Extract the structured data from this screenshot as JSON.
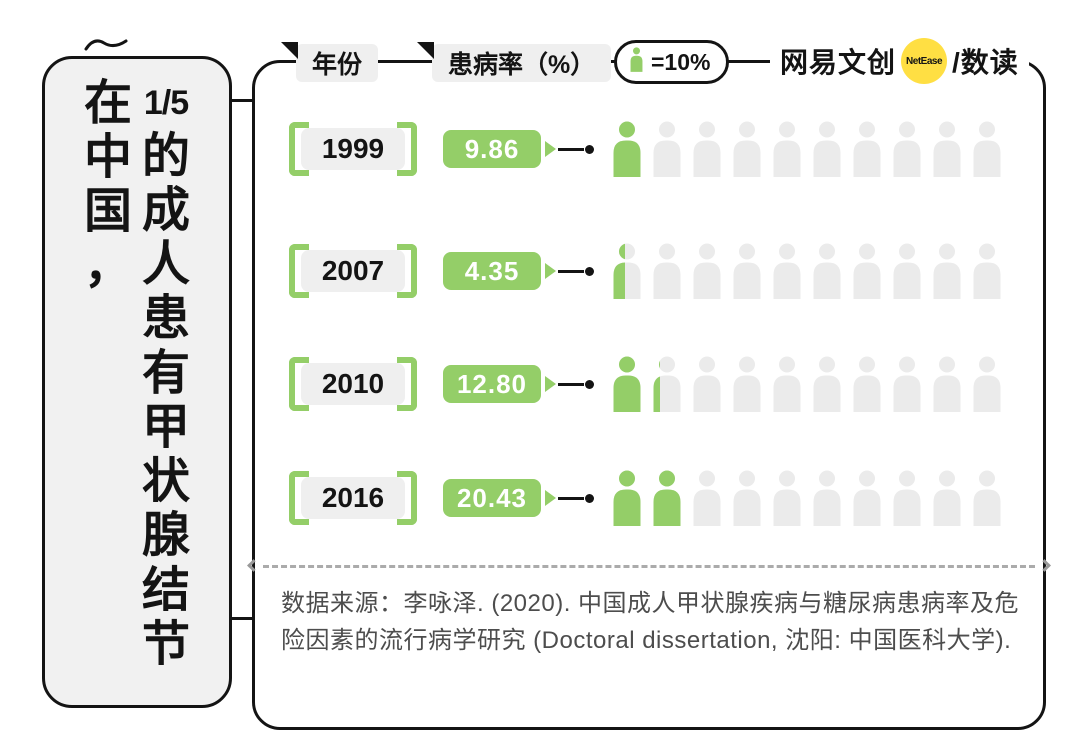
{
  "title_panel": {
    "column1": [
      "在",
      "中",
      "国",
      "，"
    ],
    "column2": [
      "1/5",
      "的",
      "成",
      "人",
      "患",
      "有",
      "甲",
      "状",
      "腺",
      "结",
      "节"
    ],
    "full_title": "在中国，1/5的成人患有甲状腺结节"
  },
  "header": {
    "year_label": "年份",
    "rate_label": "患病率（%）",
    "legend_value": "=10%",
    "logo_brand": "网易文创",
    "logo_badge": "NetEase",
    "logo_suffix": "/数读"
  },
  "chart_data": {
    "type": "pictogram",
    "title": "在中国，1/5的成人患有甲状腺结节",
    "xlabel": "年份",
    "ylabel": "患病率（%）",
    "legend": "1 person icon = 10%",
    "icon_unit_percent": 10,
    "icons_per_row": 10,
    "categories": [
      "1999",
      "2007",
      "2010",
      "2016"
    ],
    "values": [
      9.86,
      4.35,
      12.8,
      20.43
    ],
    "value_labels": [
      "9.86",
      "4.35",
      "12.80",
      "20.43"
    ],
    "colors": {
      "filled": "#94CE68",
      "empty": "#EBEBEB",
      "accent_yellow": "#FFDF43"
    }
  },
  "source": {
    "text": "数据来源：李咏泽. (2020). 中国成人甲状腺疾病与糖尿病患病率及危险因素的流行病学研究 (Doctoral dissertation, 沈阳: 中国医科大学)."
  }
}
